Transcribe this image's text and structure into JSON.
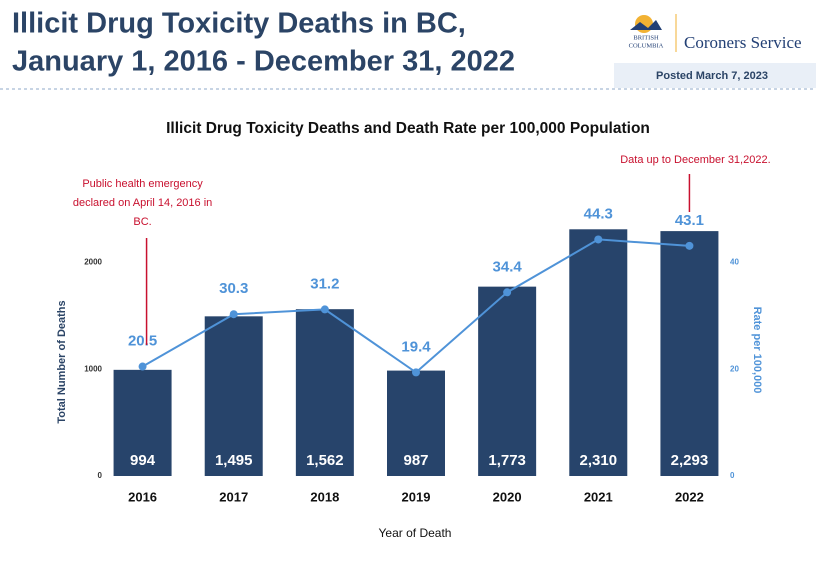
{
  "header": {
    "title_lines": [
      "Illicit Drug Toxicity Deaths in BC,",
      "January 1, 2016 - December 31, 2022"
    ],
    "logo_lines": [
      "BRITISH",
      "COLUMBIA"
    ],
    "organization": "Coroners Service",
    "posted": "Posted March 7, 2023"
  },
  "chart_data": {
    "type": "bar",
    "title": "Illicit Drug Toxicity Deaths and Death Rate per 100,000 Population",
    "x_label": "Year of Death",
    "y_label": "Total Number of Deaths",
    "y2_label": "Rate per 100,000",
    "categories": [
      "2016",
      "2017",
      "2018",
      "2019",
      "2020",
      "2021",
      "2022"
    ],
    "series": [
      {
        "type": "bar",
        "color": "#27446b",
        "values": [
          994,
          1495,
          1562,
          987,
          1773,
          2310,
          2293
        ],
        "value_labels": [
          "994",
          "1,495",
          "1,562",
          "987",
          "1,773",
          "2,310",
          "2,293"
        ]
      },
      {
        "type": "line",
        "axis": "y2",
        "color": "#4f93d8",
        "values": [
          20.5,
          30.3,
          31.2,
          19.4,
          34.4,
          44.3,
          43.1
        ]
      }
    ],
    "ylim": [
      0,
      2500
    ],
    "yticks": [
      0,
      1000,
      2000
    ],
    "y2lim": [
      0,
      50
    ],
    "y2ticks": [
      0,
      20,
      40
    ],
    "annotations": [
      {
        "lines": [
          "Public health emergency",
          "declared on April 14, 2016 in",
          "BC."
        ],
        "color": "#c8102e"
      },
      {
        "lines": [
          "Data up to December 31,2022."
        ],
        "color": "#c8102e"
      }
    ]
  }
}
